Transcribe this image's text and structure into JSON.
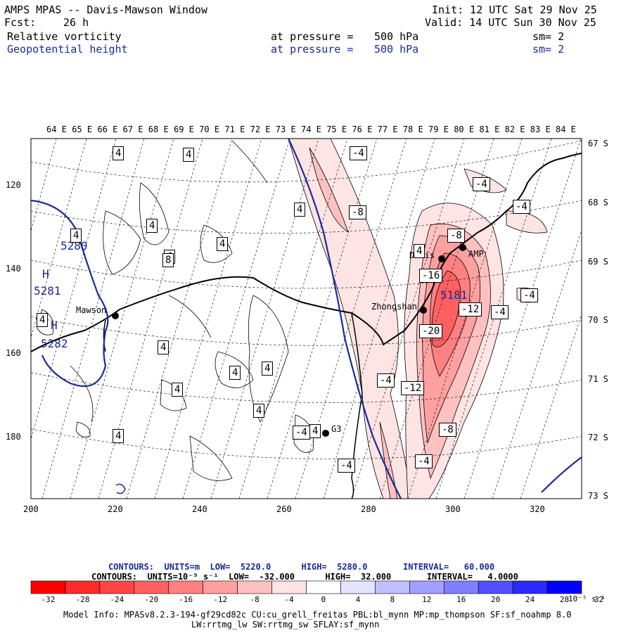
{
  "header": {
    "title": "AMPS MPAS -- Davis-Mawson Window",
    "init": "Init: 12 UTC Sat 29 Nov 25",
    "fcst_label": "Fcst:",
    "fcst_value": "26 h",
    "valid": "Valid: 14 UTC Sun 30 Nov 25",
    "field1": {
      "name": "Relative vorticity",
      "at": "at pressure =",
      "level": "500 hPa",
      "sm": "sm= 2"
    },
    "field2": {
      "name": "Geopotential height",
      "at": "at pressure =",
      "level": "500 hPa",
      "sm": "sm= 2"
    }
  },
  "longitude_labels": [
    "64 E",
    "65 E",
    "66 E",
    "67 E",
    "68 E",
    "69 E",
    "70 E",
    "71 E",
    "72 E",
    "73 E",
    "74 E",
    "75 E",
    "76 E",
    "77 E",
    "78 E",
    "79 E",
    "80 E",
    "81 E",
    "82 E",
    "83 E",
    "84 E"
  ],
  "latitude_labels": [
    "67 S",
    "68 S",
    "69 S",
    "70 S",
    "71 S",
    "72 S",
    "73 S"
  ],
  "y_axis_labels": [
    "120",
    "140",
    "160",
    "180"
  ],
  "x_axis_labels": [
    "200",
    "220",
    "240",
    "260",
    "280",
    "300",
    "320"
  ],
  "stations": [
    {
      "name": "Mawson"
    },
    {
      "name": "Zhongshan"
    },
    {
      "name": "Davis"
    },
    {
      "name": "AMP"
    },
    {
      "name": "G3"
    }
  ],
  "height_labels": [
    "5280",
    "5281",
    "5282",
    "5181"
  ],
  "high_marker": "H",
  "vorticity_labels": [
    "4",
    "4",
    "4",
    "4",
    "4",
    "4",
    "4",
    "4",
    "4",
    "4",
    "4",
    "4",
    "4",
    "4",
    "4",
    "4",
    "8",
    "-4",
    "-8",
    "-4",
    "-4",
    "-8",
    "-4",
    "-16",
    "-12",
    "-20",
    "-4",
    "-4",
    "-12",
    "-8",
    "-4",
    "-4",
    "-4"
  ],
  "contour_info": {
    "line1": "CONTOURS:  UNITS=m  LOW=  5220.0      HIGH=  5280.0       INTERVAL=   60.000",
    "line2": "CONTOURS:  UNITS=10⁻⁵ s⁻¹  LOW=  -32.000      HIGH=  32.000       INTERVAL=   4.0000"
  },
  "colorbar": {
    "labels": [
      "-32",
      "-28",
      "-24",
      "-20",
      "-16",
      "-12",
      "-8",
      "-4",
      "0",
      "4",
      "8",
      "12",
      "16",
      "20",
      "24",
      "28",
      "32"
    ],
    "unit": "10⁻⁵ s⁻¹",
    "colors": [
      "#ff0000",
      "#ff2a2a",
      "#ff4545",
      "#ff6060",
      "#ff8080",
      "#ffa0a0",
      "#ffc0c0",
      "#ffe4e4",
      "#ffffff",
      "#ffffff",
      "#e4e4ff",
      "#c0c0ff",
      "#a0a0ff",
      "#8080ff",
      "#5050ff",
      "#2a2aff",
      "#0000ff"
    ]
  },
  "model_info": {
    "line1": "Model Info: MPASv8.2.3-194-gf29cd82c CU:cu_grell_freitas PBL:bl_mynn MP:mp_thompson SF:sf_noahmp 8.0",
    "line2": "LW:rrtmg_lw SW:rrtmg_sw SFLAY:sf_mynn"
  }
}
